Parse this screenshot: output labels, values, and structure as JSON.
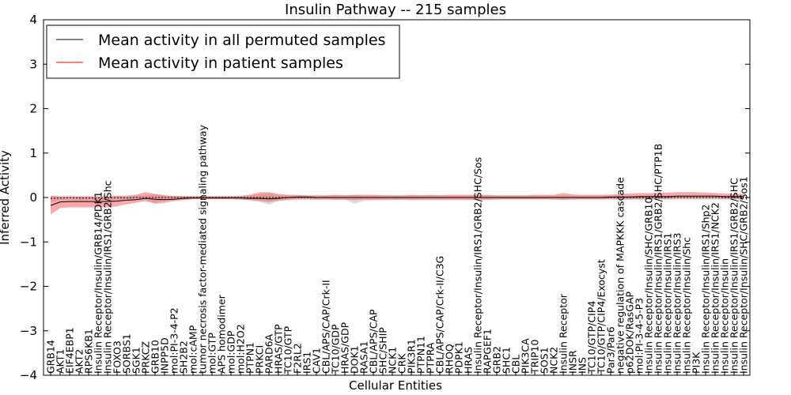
{
  "chart_data": {
    "type": "line",
    "title": "Insulin Pathway -- 215 samples",
    "xlabel": "Cellular Entities",
    "ylabel": "Inferred Activity",
    "ylim": [
      -4,
      4
    ],
    "yticks": [
      "−4",
      "−3",
      "−2",
      "−1",
      "0",
      "1",
      "2",
      "3",
      "4"
    ],
    "legend": {
      "placement": "top-left",
      "entries": [
        "Mean activity in all permuted samples",
        "Mean activity in patient samples"
      ]
    },
    "colors": {
      "permuted": "#000000",
      "patient": "#ff0000",
      "permuted_band": "#bfbfbf",
      "patient_band": "#f26060"
    },
    "categories": [
      "GRB14",
      "AKT1",
      "EIF4EBP1",
      "AKT2",
      "RPS6KB1",
      "Insulin Receptor/Insulin/GRB14/PDK1",
      "Insulin Receptor/Insulin/IRS1/GRB2/Shc",
      "FOXO3",
      "SORBS1",
      "SGK1",
      "PRKCZ",
      "GRB10",
      "INPP5D",
      "mol:PI-3-4-P2",
      "SH2B2",
      "mol:cAMP",
      "tumor necrosis factor-mediated signaling pathway",
      "mol:GTP",
      "APS homodimer",
      "mol:GDP",
      "mol:H2O2",
      "PTPN1",
      "PRKCI",
      "PARD6A",
      "HRAS/GTP",
      "TC10/GTP",
      "F2RL2",
      "IRS1",
      "CAV1",
      "CBL/APS/CAP/Crk-II",
      "TC10/GDP",
      "HRAS/GDP",
      "DOK1",
      "RASA1",
      "CBL/APS/CAP",
      "SHC/SHIP",
      "NCK1",
      "CRK",
      "PIK3R1",
      "PTPN11",
      "PTPRA",
      "CBL/APS/CAP/Crk-II/C3G",
      "RHOQ",
      "PDPK1",
      "HRAS",
      "Insulin Receptor/Insulin/IRS1/GRB2/SHC/Sos",
      "RAPGEF1",
      "GRB2",
      "SHC1",
      "CBL",
      "PIK3CA",
      "TRIP10",
      "SOS1",
      "NCK2",
      "Insulin Receptor",
      "INSR",
      "INS",
      "TC10/GTP/CIP4",
      "TC10/GTP/CIP4/Exocyst",
      "Par3/Par6",
      "negative regulation of MAPKKK cascade",
      "p62DOK/RasGAP",
      "mol:PI-3-4-5-P3",
      "Insulin Receptor/Insulin/SHC/GRB10",
      "Insulin Receptor/Insulin/IRS1/GRB2/SHC/PTP1B",
      "Insulin Receptor/Insulin/IRS1",
      "Insulin Receptor/Insulin/IRS3",
      "Insulin Receptor/Insulin/Shc",
      "PI3K",
      "Insulin Receptor/Insulin/IRS1/Shp2",
      "Insulin Receptor/Insulin/IRS1/NCK2",
      "Insulin Receptor/Insulin",
      "Insulin Receptor/Insulin/IRS1/GRB2/SHC",
      "Insulin Receptor/Insulin/SHC/GRB2/Sos1"
    ],
    "series": [
      {
        "name": "Mean activity in all permuted samples",
        "values": [
          -0.02,
          -0.01,
          0.0,
          -0.01,
          -0.01,
          -0.01,
          -0.01,
          0.0,
          -0.01,
          0.0,
          0.0,
          0.0,
          0.0,
          0.0,
          0.0,
          0.0,
          0.0,
          0.0,
          0.0,
          0.0,
          0.0,
          0.0,
          0.0,
          0.0,
          0.0,
          0.0,
          0.0,
          0.0,
          0.0,
          0.0,
          0.0,
          0.0,
          0.0,
          0.0,
          0.0,
          0.0,
          0.0,
          0.0,
          0.0,
          0.0,
          0.0,
          0.0,
          0.0,
          0.0,
          0.0,
          0.0,
          0.0,
          0.0,
          0.0,
          0.0,
          0.0,
          0.0,
          0.0,
          0.0,
          0.0,
          0.0,
          0.0,
          0.0,
          0.0,
          0.0,
          0.0,
          0.0,
          0.0,
          0.0,
          0.0,
          0.0,
          0.0,
          0.0,
          0.0,
          0.0,
          0.0,
          0.0,
          0.0,
          0.0
        ],
        "lower": [
          -0.1,
          -0.06,
          -0.05,
          -0.06,
          -0.06,
          -0.06,
          -0.06,
          -0.05,
          -0.06,
          -0.04,
          -0.05,
          -0.12,
          -0.06,
          -0.04,
          -0.04,
          -0.03,
          -0.03,
          -0.03,
          -0.03,
          -0.03,
          -0.04,
          -0.06,
          -0.1,
          -0.16,
          -0.08,
          -0.06,
          -0.05,
          -0.05,
          -0.05,
          -0.05,
          -0.06,
          -0.05,
          -0.14,
          -0.08,
          -0.07,
          -0.06,
          -0.06,
          -0.05,
          -0.07,
          -0.06,
          -0.06,
          -0.06,
          -0.06,
          -0.06,
          -0.06,
          -0.06,
          -0.06,
          -0.05,
          -0.05,
          -0.05,
          -0.05,
          -0.05,
          -0.05,
          -0.05,
          -0.06,
          -0.05,
          -0.05,
          -0.05,
          -0.05,
          -0.05,
          -0.06,
          -0.05,
          -0.05,
          -0.05,
          -0.05,
          -0.05,
          -0.05,
          -0.05,
          -0.05,
          -0.05,
          -0.05,
          -0.05,
          -0.05,
          -0.05
        ],
        "upper": [
          0.04,
          0.04,
          0.05,
          0.04,
          0.04,
          0.04,
          0.04,
          0.05,
          0.04,
          0.04,
          0.04,
          0.08,
          0.05,
          0.04,
          0.03,
          0.03,
          0.03,
          0.03,
          0.03,
          0.03,
          0.03,
          0.05,
          0.07,
          0.1,
          0.06,
          0.05,
          0.05,
          0.04,
          0.04,
          0.04,
          0.05,
          0.05,
          0.06,
          0.05,
          0.05,
          0.05,
          0.05,
          0.04,
          0.05,
          0.05,
          0.05,
          0.05,
          0.05,
          0.05,
          0.05,
          0.05,
          0.05,
          0.04,
          0.04,
          0.04,
          0.04,
          0.04,
          0.04,
          0.04,
          0.05,
          0.04,
          0.04,
          0.04,
          0.04,
          0.04,
          0.05,
          0.04,
          0.04,
          0.04,
          0.04,
          0.04,
          0.04,
          0.04,
          0.04,
          0.04,
          0.04,
          0.04,
          0.04,
          0.04
        ]
      },
      {
        "name": "Mean activity in patient samples",
        "values": [
          -0.18,
          -0.1,
          -0.09,
          -0.09,
          -0.09,
          -0.09,
          -0.09,
          -0.08,
          -0.06,
          -0.05,
          -0.02,
          -0.04,
          -0.05,
          -0.04,
          -0.02,
          -0.01,
          -0.01,
          -0.01,
          -0.01,
          -0.01,
          -0.01,
          -0.02,
          -0.02,
          -0.03,
          -0.02,
          0.0,
          0.01,
          0.01,
          0.0,
          0.0,
          0.0,
          0.0,
          0.0,
          0.0,
          0.0,
          0.0,
          0.0,
          0.0,
          0.0,
          0.0,
          0.0,
          0.0,
          0.0,
          0.0,
          0.0,
          0.0,
          0.0,
          0.0,
          0.0,
          0.0,
          0.0,
          0.0,
          0.0,
          0.0,
          0.0,
          0.0,
          0.0,
          0.0,
          0.0,
          0.01,
          0.01,
          0.01,
          0.02,
          0.02,
          0.02,
          0.02,
          0.03,
          0.03,
          0.03,
          0.03,
          0.03,
          0.02,
          0.02,
          0.02
        ],
        "lower": [
          -0.38,
          -0.24,
          -0.22,
          -0.22,
          -0.22,
          -0.22,
          -0.22,
          -0.2,
          -0.15,
          -0.12,
          -0.08,
          -0.14,
          -0.12,
          -0.08,
          -0.06,
          -0.04,
          -0.04,
          -0.04,
          -0.04,
          -0.04,
          -0.05,
          -0.06,
          -0.08,
          -0.1,
          -0.07,
          -0.05,
          -0.04,
          -0.04,
          -0.05,
          -0.04,
          -0.05,
          -0.05,
          -0.06,
          -0.05,
          -0.05,
          -0.05,
          -0.05,
          -0.05,
          -0.05,
          -0.05,
          -0.05,
          -0.05,
          -0.05,
          -0.05,
          -0.05,
          -0.05,
          -0.05,
          -0.04,
          -0.04,
          -0.04,
          -0.04,
          -0.04,
          -0.04,
          -0.04,
          -0.05,
          -0.04,
          -0.04,
          -0.04,
          -0.04,
          -0.03,
          -0.04,
          -0.04,
          -0.04,
          -0.03,
          -0.03,
          -0.03,
          -0.02,
          -0.02,
          -0.02,
          -0.02,
          -0.02,
          -0.03,
          -0.03,
          -0.03
        ],
        "upper": [
          0.04,
          0.02,
          0.01,
          0.02,
          0.02,
          0.02,
          0.02,
          0.03,
          0.04,
          0.06,
          0.12,
          0.08,
          0.05,
          0.03,
          0.03,
          0.03,
          0.03,
          0.03,
          0.03,
          0.03,
          0.04,
          0.06,
          0.12,
          0.12,
          0.08,
          0.06,
          0.06,
          0.05,
          0.05,
          0.05,
          0.06,
          0.05,
          0.06,
          0.06,
          0.06,
          0.05,
          0.05,
          0.05,
          0.06,
          0.05,
          0.06,
          0.05,
          0.06,
          0.06,
          0.06,
          0.06,
          0.06,
          0.05,
          0.05,
          0.05,
          0.05,
          0.06,
          0.06,
          0.06,
          0.1,
          0.07,
          0.06,
          0.06,
          0.06,
          0.07,
          0.08,
          0.09,
          0.1,
          0.1,
          0.1,
          0.11,
          0.12,
          0.12,
          0.12,
          0.11,
          0.1,
          0.09,
          0.08,
          0.08
        ]
      }
    ]
  }
}
